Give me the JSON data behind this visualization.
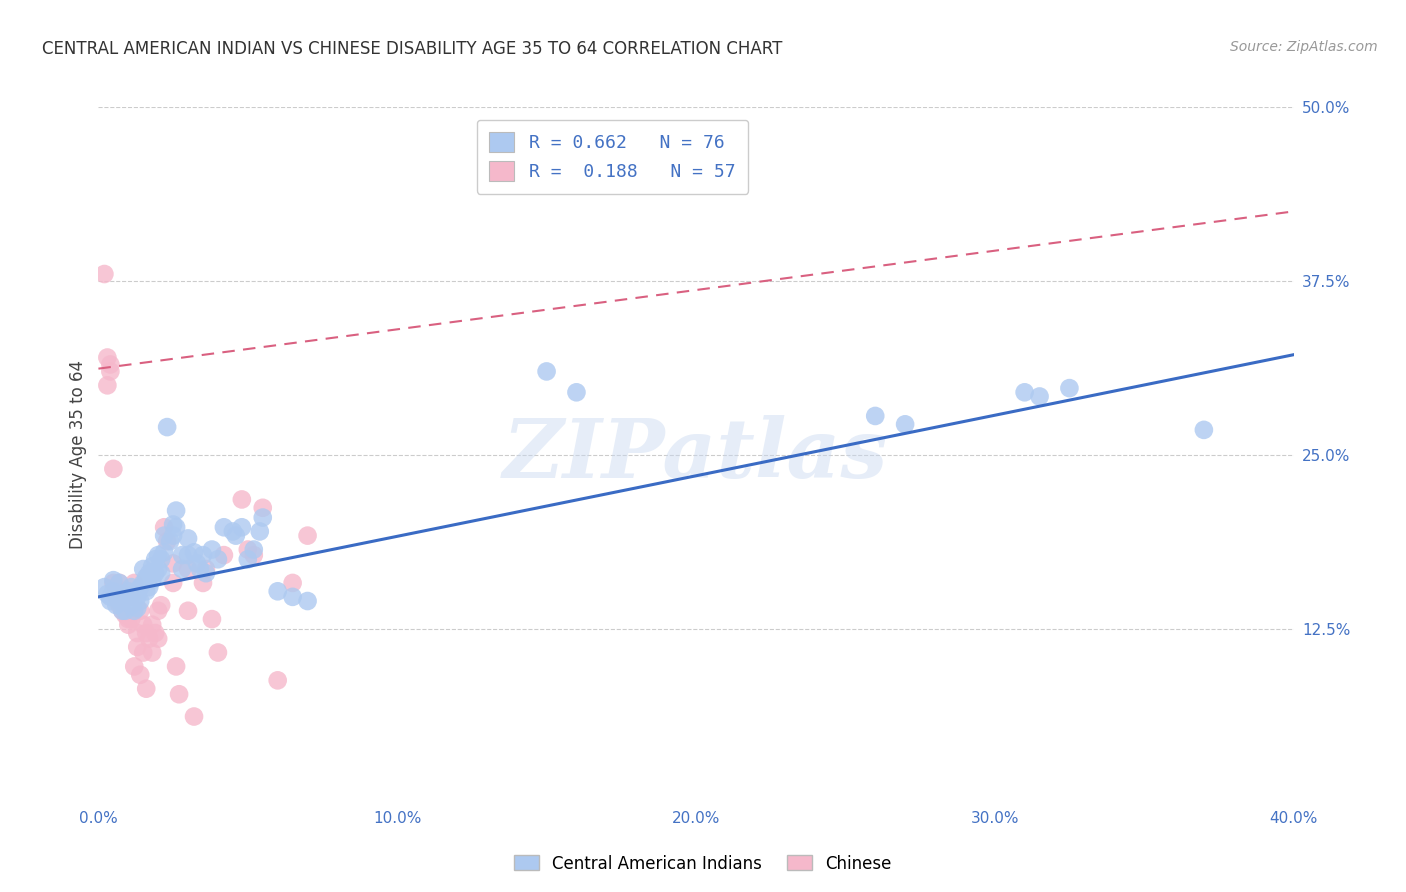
{
  "title": "CENTRAL AMERICAN INDIAN VS CHINESE DISABILITY AGE 35 TO 64 CORRELATION CHART",
  "source": "Source: ZipAtlas.com",
  "ylabel": "Disability Age 35 to 64",
  "xlim": [
    0.0,
    0.4
  ],
  "ylim": [
    0.0,
    0.5
  ],
  "xticks": [
    0.0,
    0.1,
    0.2,
    0.3,
    0.4
  ],
  "xtick_labels": [
    "0.0%",
    "10.0%",
    "20.0%",
    "30.0%",
    "40.0%"
  ],
  "yticks": [
    0.125,
    0.25,
    0.375,
    0.5
  ],
  "ytick_labels": [
    "12.5%",
    "25.0%",
    "37.5%",
    "50.0%"
  ],
  "legend_label_r1": "R = 0.662   N = 76",
  "legend_label_r2": "R =  0.188   N = 57",
  "legend_label_1": "Central American Indians",
  "legend_label_2": "Chinese",
  "blue_color": "#adc9f0",
  "pink_color": "#f5b8cb",
  "blue_line_color": "#3a6bc4",
  "pink_line_color": "#d96080",
  "watermark": "ZIPatlas",
  "blue_scatter": [
    [
      0.002,
      0.155
    ],
    [
      0.003,
      0.15
    ],
    [
      0.004,
      0.148
    ],
    [
      0.004,
      0.145
    ],
    [
      0.005,
      0.16
    ],
    [
      0.005,
      0.152
    ],
    [
      0.006,
      0.148
    ],
    [
      0.006,
      0.142
    ],
    [
      0.007,
      0.158
    ],
    [
      0.007,
      0.145
    ],
    [
      0.008,
      0.15
    ],
    [
      0.008,
      0.138
    ],
    [
      0.009,
      0.148
    ],
    [
      0.009,
      0.138
    ],
    [
      0.01,
      0.152
    ],
    [
      0.01,
      0.145
    ],
    [
      0.011,
      0.155
    ],
    [
      0.011,
      0.142
    ],
    [
      0.012,
      0.15
    ],
    [
      0.012,
      0.138
    ],
    [
      0.013,
      0.148
    ],
    [
      0.013,
      0.14
    ],
    [
      0.014,
      0.155
    ],
    [
      0.014,
      0.145
    ],
    [
      0.015,
      0.168
    ],
    [
      0.015,
      0.158
    ],
    [
      0.016,
      0.162
    ],
    [
      0.016,
      0.152
    ],
    [
      0.017,
      0.165
    ],
    [
      0.017,
      0.155
    ],
    [
      0.018,
      0.17
    ],
    [
      0.018,
      0.16
    ],
    [
      0.019,
      0.175
    ],
    [
      0.019,
      0.165
    ],
    [
      0.02,
      0.178
    ],
    [
      0.02,
      0.168
    ],
    [
      0.021,
      0.175
    ],
    [
      0.021,
      0.165
    ],
    [
      0.022,
      0.18
    ],
    [
      0.022,
      0.192
    ],
    [
      0.023,
      0.27
    ],
    [
      0.024,
      0.188
    ],
    [
      0.025,
      0.2
    ],
    [
      0.025,
      0.192
    ],
    [
      0.026,
      0.21
    ],
    [
      0.026,
      0.198
    ],
    [
      0.028,
      0.178
    ],
    [
      0.028,
      0.168
    ],
    [
      0.03,
      0.19
    ],
    [
      0.03,
      0.178
    ],
    [
      0.032,
      0.18
    ],
    [
      0.033,
      0.172
    ],
    [
      0.034,
      0.168
    ],
    [
      0.035,
      0.178
    ],
    [
      0.036,
      0.165
    ],
    [
      0.038,
      0.182
    ],
    [
      0.04,
      0.175
    ],
    [
      0.042,
      0.198
    ],
    [
      0.045,
      0.195
    ],
    [
      0.046,
      0.192
    ],
    [
      0.048,
      0.198
    ],
    [
      0.05,
      0.175
    ],
    [
      0.052,
      0.182
    ],
    [
      0.054,
      0.195
    ],
    [
      0.055,
      0.205
    ],
    [
      0.06,
      0.152
    ],
    [
      0.065,
      0.148
    ],
    [
      0.07,
      0.145
    ],
    [
      0.15,
      0.31
    ],
    [
      0.16,
      0.295
    ],
    [
      0.26,
      0.278
    ],
    [
      0.27,
      0.272
    ],
    [
      0.31,
      0.295
    ],
    [
      0.315,
      0.292
    ],
    [
      0.325,
      0.298
    ],
    [
      0.37,
      0.268
    ]
  ],
  "pink_scatter": [
    [
      0.002,
      0.38
    ],
    [
      0.003,
      0.3
    ],
    [
      0.003,
      0.32
    ],
    [
      0.004,
      0.31
    ],
    [
      0.004,
      0.315
    ],
    [
      0.005,
      0.24
    ],
    [
      0.005,
      0.158
    ],
    [
      0.006,
      0.152
    ],
    [
      0.006,
      0.148
    ],
    [
      0.007,
      0.158
    ],
    [
      0.007,
      0.142
    ],
    [
      0.008,
      0.152
    ],
    [
      0.008,
      0.138
    ],
    [
      0.009,
      0.148
    ],
    [
      0.009,
      0.135
    ],
    [
      0.01,
      0.132
    ],
    [
      0.01,
      0.128
    ],
    [
      0.011,
      0.148
    ],
    [
      0.011,
      0.132
    ],
    [
      0.012,
      0.158
    ],
    [
      0.012,
      0.098
    ],
    [
      0.013,
      0.122
    ],
    [
      0.013,
      0.112
    ],
    [
      0.014,
      0.138
    ],
    [
      0.014,
      0.092
    ],
    [
      0.015,
      0.128
    ],
    [
      0.015,
      0.108
    ],
    [
      0.016,
      0.122
    ],
    [
      0.016,
      0.082
    ],
    [
      0.017,
      0.118
    ],
    [
      0.018,
      0.128
    ],
    [
      0.018,
      0.108
    ],
    [
      0.019,
      0.122
    ],
    [
      0.02,
      0.138
    ],
    [
      0.02,
      0.118
    ],
    [
      0.021,
      0.142
    ],
    [
      0.022,
      0.198
    ],
    [
      0.023,
      0.188
    ],
    [
      0.025,
      0.172
    ],
    [
      0.025,
      0.158
    ],
    [
      0.026,
      0.098
    ],
    [
      0.027,
      0.078
    ],
    [
      0.03,
      0.168
    ],
    [
      0.03,
      0.138
    ],
    [
      0.032,
      0.062
    ],
    [
      0.035,
      0.158
    ],
    [
      0.036,
      0.168
    ],
    [
      0.038,
      0.132
    ],
    [
      0.04,
      0.108
    ],
    [
      0.042,
      0.178
    ],
    [
      0.048,
      0.218
    ],
    [
      0.05,
      0.182
    ],
    [
      0.052,
      0.178
    ],
    [
      0.055,
      0.212
    ],
    [
      0.06,
      0.088
    ],
    [
      0.065,
      0.158
    ],
    [
      0.07,
      0.192
    ]
  ],
  "blue_trendline_x": [
    0.0,
    0.4
  ],
  "blue_trendline_y": [
    0.148,
    0.322
  ],
  "pink_trendline_x": [
    0.0,
    0.4
  ],
  "pink_trendline_y": [
    0.312,
    0.425
  ],
  "background_color": "#ffffff",
  "grid_color": "#cccccc"
}
